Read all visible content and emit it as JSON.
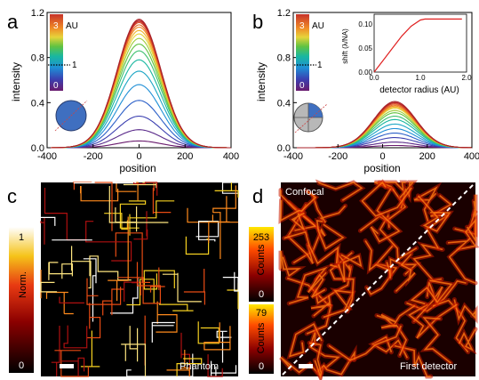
{
  "panels": {
    "a": {
      "label": "a"
    },
    "b": {
      "label": "b"
    },
    "c": {
      "label": "c",
      "colorbar_top": "1",
      "colorbar_bottom": "0",
      "colorbar_label": "Norm.",
      "image_label": "Phantom"
    },
    "d": {
      "label": "d",
      "image_top_label": "Confocal",
      "image_bottom_label": "First detector",
      "colorbar1_top": "253",
      "colorbar1_bottom": "0",
      "colorbar1_label": "Counts",
      "colorbar2_top": "79",
      "colorbar2_bottom": "0",
      "colorbar2_label": "Counts"
    }
  },
  "chart_data": [
    {
      "id": "a",
      "type": "line",
      "xlabel": "position",
      "ylabel": "intensity",
      "xlim": [
        -400,
        400
      ],
      "ylim": [
        0,
        1.2
      ],
      "xticks": [
        "-400",
        "-200",
        "0",
        "200",
        "400"
      ],
      "yticks": [
        "0.0",
        "0.4",
        "0.8",
        "1.2"
      ],
      "colorbar": {
        "top": "3",
        "unit": "AU",
        "mid": "1",
        "bottom": "0"
      },
      "series_center": 0,
      "series_width": 95,
      "series_amplitudes": [
        0.06,
        0.16,
        0.28,
        0.42,
        0.56,
        0.68,
        0.78,
        0.86,
        0.92,
        0.97,
        1.01,
        1.04,
        1.07,
        1.09,
        1.11,
        1.12,
        1.13,
        1.14
      ]
    },
    {
      "id": "b",
      "type": "line",
      "xlabel": "position",
      "ylabel": "intensity",
      "xlim": [
        -400,
        400
      ],
      "ylim": [
        0,
        1.2
      ],
      "xticks": [
        "-400",
        "-200",
        "0",
        "200",
        "400"
      ],
      "yticks": [
        "0.0",
        "0.4",
        "0.8",
        "1.2"
      ],
      "colorbar": {
        "top": "3",
        "unit": "AU",
        "mid": "1",
        "bottom": "0"
      },
      "series_center": 55,
      "series_width": 95,
      "series_amplitudes": [
        0.02,
        0.05,
        0.09,
        0.13,
        0.17,
        0.21,
        0.25,
        0.28,
        0.31,
        0.33,
        0.35,
        0.36,
        0.37,
        0.38,
        0.39,
        0.4,
        0.4,
        0.41
      ],
      "inset": {
        "type": "line",
        "xlabel": "detector radius (AU)",
        "ylabel": "shift (λ/NA)",
        "xlim": [
          0,
          2
        ],
        "ylim": [
          0,
          0.12
        ],
        "xticks": [
          "0.0",
          "1.0",
          "2.0"
        ],
        "yticks": [
          "0.00",
          "0.05",
          "0.10"
        ],
        "x": [
          0,
          0.2,
          0.4,
          0.6,
          0.8,
          1.0,
          1.1,
          1.3,
          1.6,
          1.9
        ],
        "y": [
          0,
          0.025,
          0.05,
          0.075,
          0.095,
          0.108,
          0.11,
          0.11,
          0.11,
          0.11
        ]
      }
    }
  ]
}
